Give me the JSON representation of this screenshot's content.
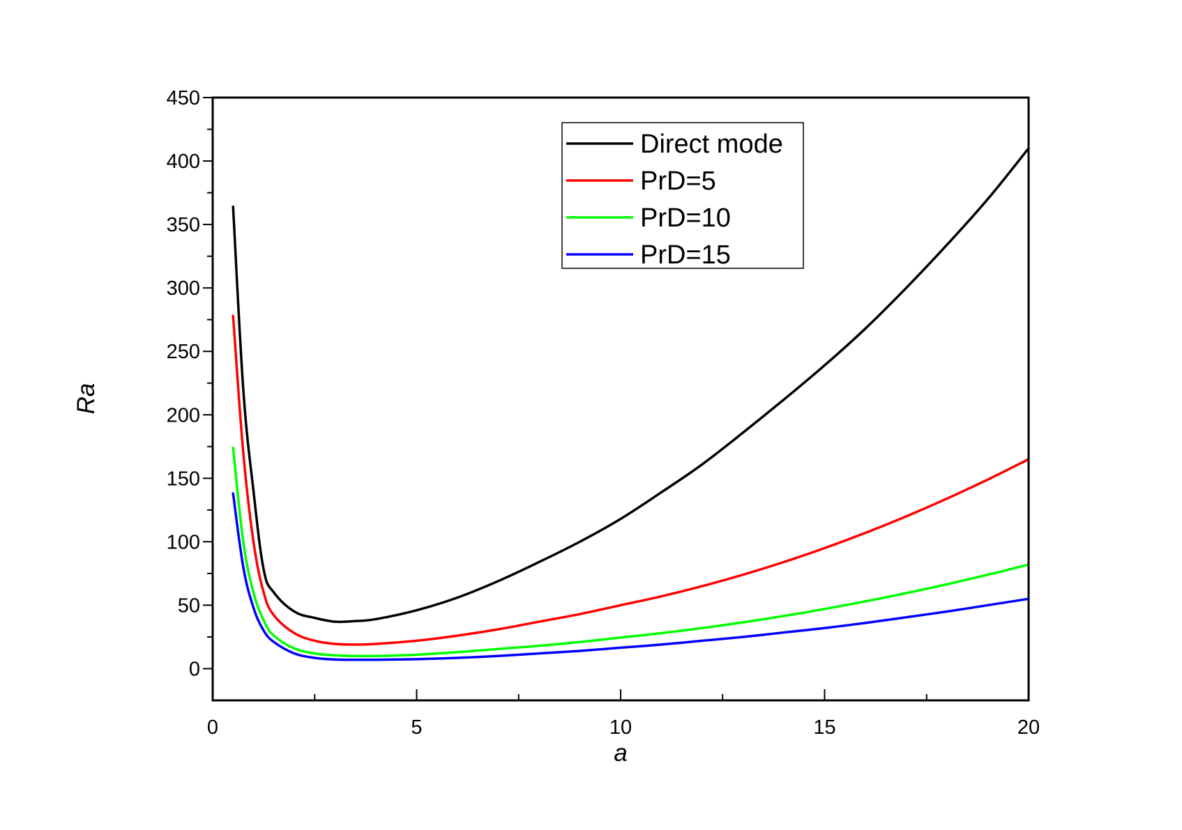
{
  "chart_data": {
    "type": "line",
    "title": "",
    "xlabel": "a",
    "ylabel": "Ra",
    "xlim": [
      0,
      20
    ],
    "ylim": [
      -25,
      450
    ],
    "xticks": [
      0,
      5,
      10,
      15,
      20
    ],
    "yticks": [
      0,
      50,
      100,
      150,
      200,
      250,
      300,
      350,
      400,
      450
    ],
    "grid": false,
    "legend_position": "top-center",
    "series": [
      {
        "name": "Direct mode",
        "color": "#000000",
        "x": [
          0.5,
          0.75,
          1.0,
          1.25,
          1.5,
          2.0,
          2.5,
          3.0,
          3.5,
          4.0,
          5.0,
          6.0,
          7.0,
          8.0,
          9.0,
          10.0,
          11.0,
          12.0,
          13.0,
          14.0,
          15.0,
          16.0,
          17.0,
          18.0,
          19.0,
          20.0
        ],
        "y": [
          364,
          220,
          140,
          78,
          60,
          45,
          40,
          37,
          37.5,
          39,
          46,
          56,
          69,
          84,
          100,
          118,
          139,
          161,
          186,
          212,
          239,
          268,
          300,
          334,
          370,
          410
        ]
      },
      {
        "name": "PrD=5",
        "color": "#ff0000",
        "x": [
          0.5,
          0.75,
          1.0,
          1.25,
          1.5,
          2.0,
          2.5,
          3.0,
          3.5,
          4.0,
          5.0,
          6.0,
          7.0,
          8.0,
          9.0,
          10.0,
          11.0,
          12.0,
          13.0,
          14.0,
          15.0,
          16.0,
          17.0,
          18.0,
          19.0,
          20.0
        ],
        "y": [
          278,
          170,
          100,
          60,
          42,
          28,
          22,
          19.5,
          19,
          19.5,
          22,
          26,
          31,
          37,
          43,
          50,
          57,
          65,
          74,
          84,
          95,
          107,
          120,
          134,
          149,
          165
        ]
      },
      {
        "name": "PrD=10",
        "color": "#00ff00",
        "x": [
          0.5,
          0.75,
          1.0,
          1.25,
          1.5,
          2.0,
          2.5,
          3.0,
          3.5,
          4.0,
          5.0,
          6.0,
          7.0,
          8.0,
          9.0,
          10.0,
          11.0,
          12.0,
          13.0,
          14.0,
          15.0,
          16.0,
          17.0,
          18.0,
          19.0,
          20.0
        ],
        "y": [
          174,
          100,
          60,
          38,
          26,
          16,
          12,
          10.5,
          10,
          10,
          11,
          13,
          15.5,
          18,
          21,
          24.5,
          28,
          32,
          36.5,
          41.5,
          47,
          53,
          59.5,
          66.5,
          74,
          82
        ]
      },
      {
        "name": "PrD=15",
        "color": "#0000ff",
        "x": [
          0.5,
          0.75,
          1.0,
          1.25,
          1.5,
          2.0,
          2.5,
          3.0,
          3.5,
          4.0,
          5.0,
          6.0,
          7.0,
          8.0,
          9.0,
          10.0,
          11.0,
          12.0,
          13.0,
          14.0,
          15.0,
          16.0,
          17.0,
          18.0,
          19.0,
          20.0
        ],
        "y": [
          138,
          80,
          48,
          30,
          21,
          12,
          8.5,
          7.2,
          7,
          7,
          7.5,
          8.5,
          10,
          12,
          14,
          16.5,
          19,
          22,
          25,
          28.5,
          32,
          36,
          40.5,
          45,
          50,
          55
        ]
      }
    ]
  }
}
